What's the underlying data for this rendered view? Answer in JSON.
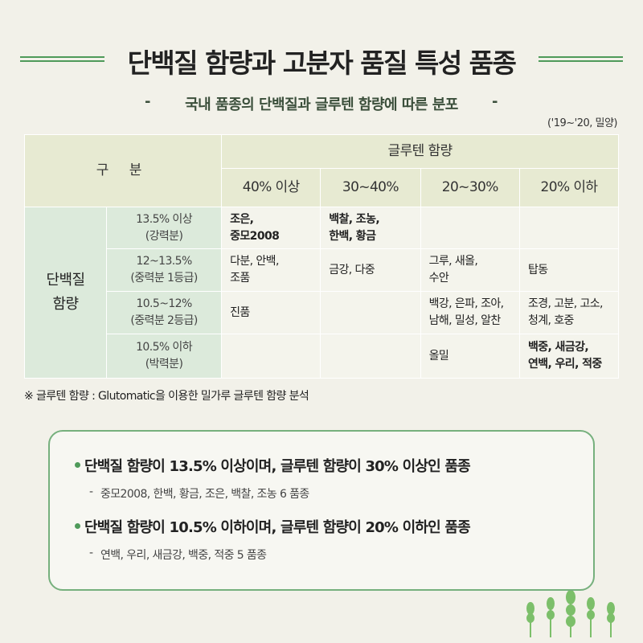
{
  "header": {
    "title": "단백질 함량과 고분자 품질 특성 품종",
    "subtitle": "국내 품종의 단백질과 글루텐 함량에 따른 분포",
    "note": "('19~'20, 밀양)"
  },
  "table": {
    "corner": "구 분",
    "gluten_header": "글루텐 함량",
    "columns": [
      "40% 이상",
      "30~40%",
      "20~30%",
      "20% 이하"
    ],
    "row_group": "단백질\n함량",
    "rows": [
      {
        "label": "13.5% 이상\n(강력분)",
        "cells": [
          "조은,\n중모2008",
          "백찰, 조농,\n한백, 황금",
          "",
          ""
        ],
        "bold": [
          true,
          true,
          false,
          false
        ]
      },
      {
        "label": "12~13.5%\n(중력분 1등급)",
        "cells": [
          "다분, 안백,\n조품",
          "금강, 다중",
          "그루, 새올,\n수안",
          "탑동"
        ],
        "bold": [
          false,
          false,
          false,
          false
        ]
      },
      {
        "label": "10.5~12%\n(중력분 2등급)",
        "cells": [
          "진품",
          "",
          "백강, 은파, 조아,\n남해, 밀성, 알찬",
          "조경, 고분, 고소,\n청계, 호중"
        ],
        "bold": [
          false,
          false,
          false,
          false
        ]
      },
      {
        "label": "10.5% 이하\n(박력분)",
        "cells": [
          "",
          "",
          "올밀",
          "백중, 새금강,\n연백, 우리, 적중"
        ],
        "bold": [
          false,
          false,
          false,
          true
        ]
      }
    ],
    "footnote": "※ 글루텐 함량 : Glutomatic을 이용한 밀가루 글루텐 함량 분석"
  },
  "summary": [
    {
      "heading": "단백질 함량이 13.5% 이상이며, 글루텐 함량이 30% 이상인 품종",
      "detail": "중모2008, 한백, 황금, 조은, 백찰, 조농 6 품종"
    },
    {
      "heading": "단백질 함량이 10.5% 이하이며, 글루텐 함량이 20% 이하인 품종",
      "detail": "연백, 우리, 새금강, 백중, 적중 5 품종"
    }
  ]
}
